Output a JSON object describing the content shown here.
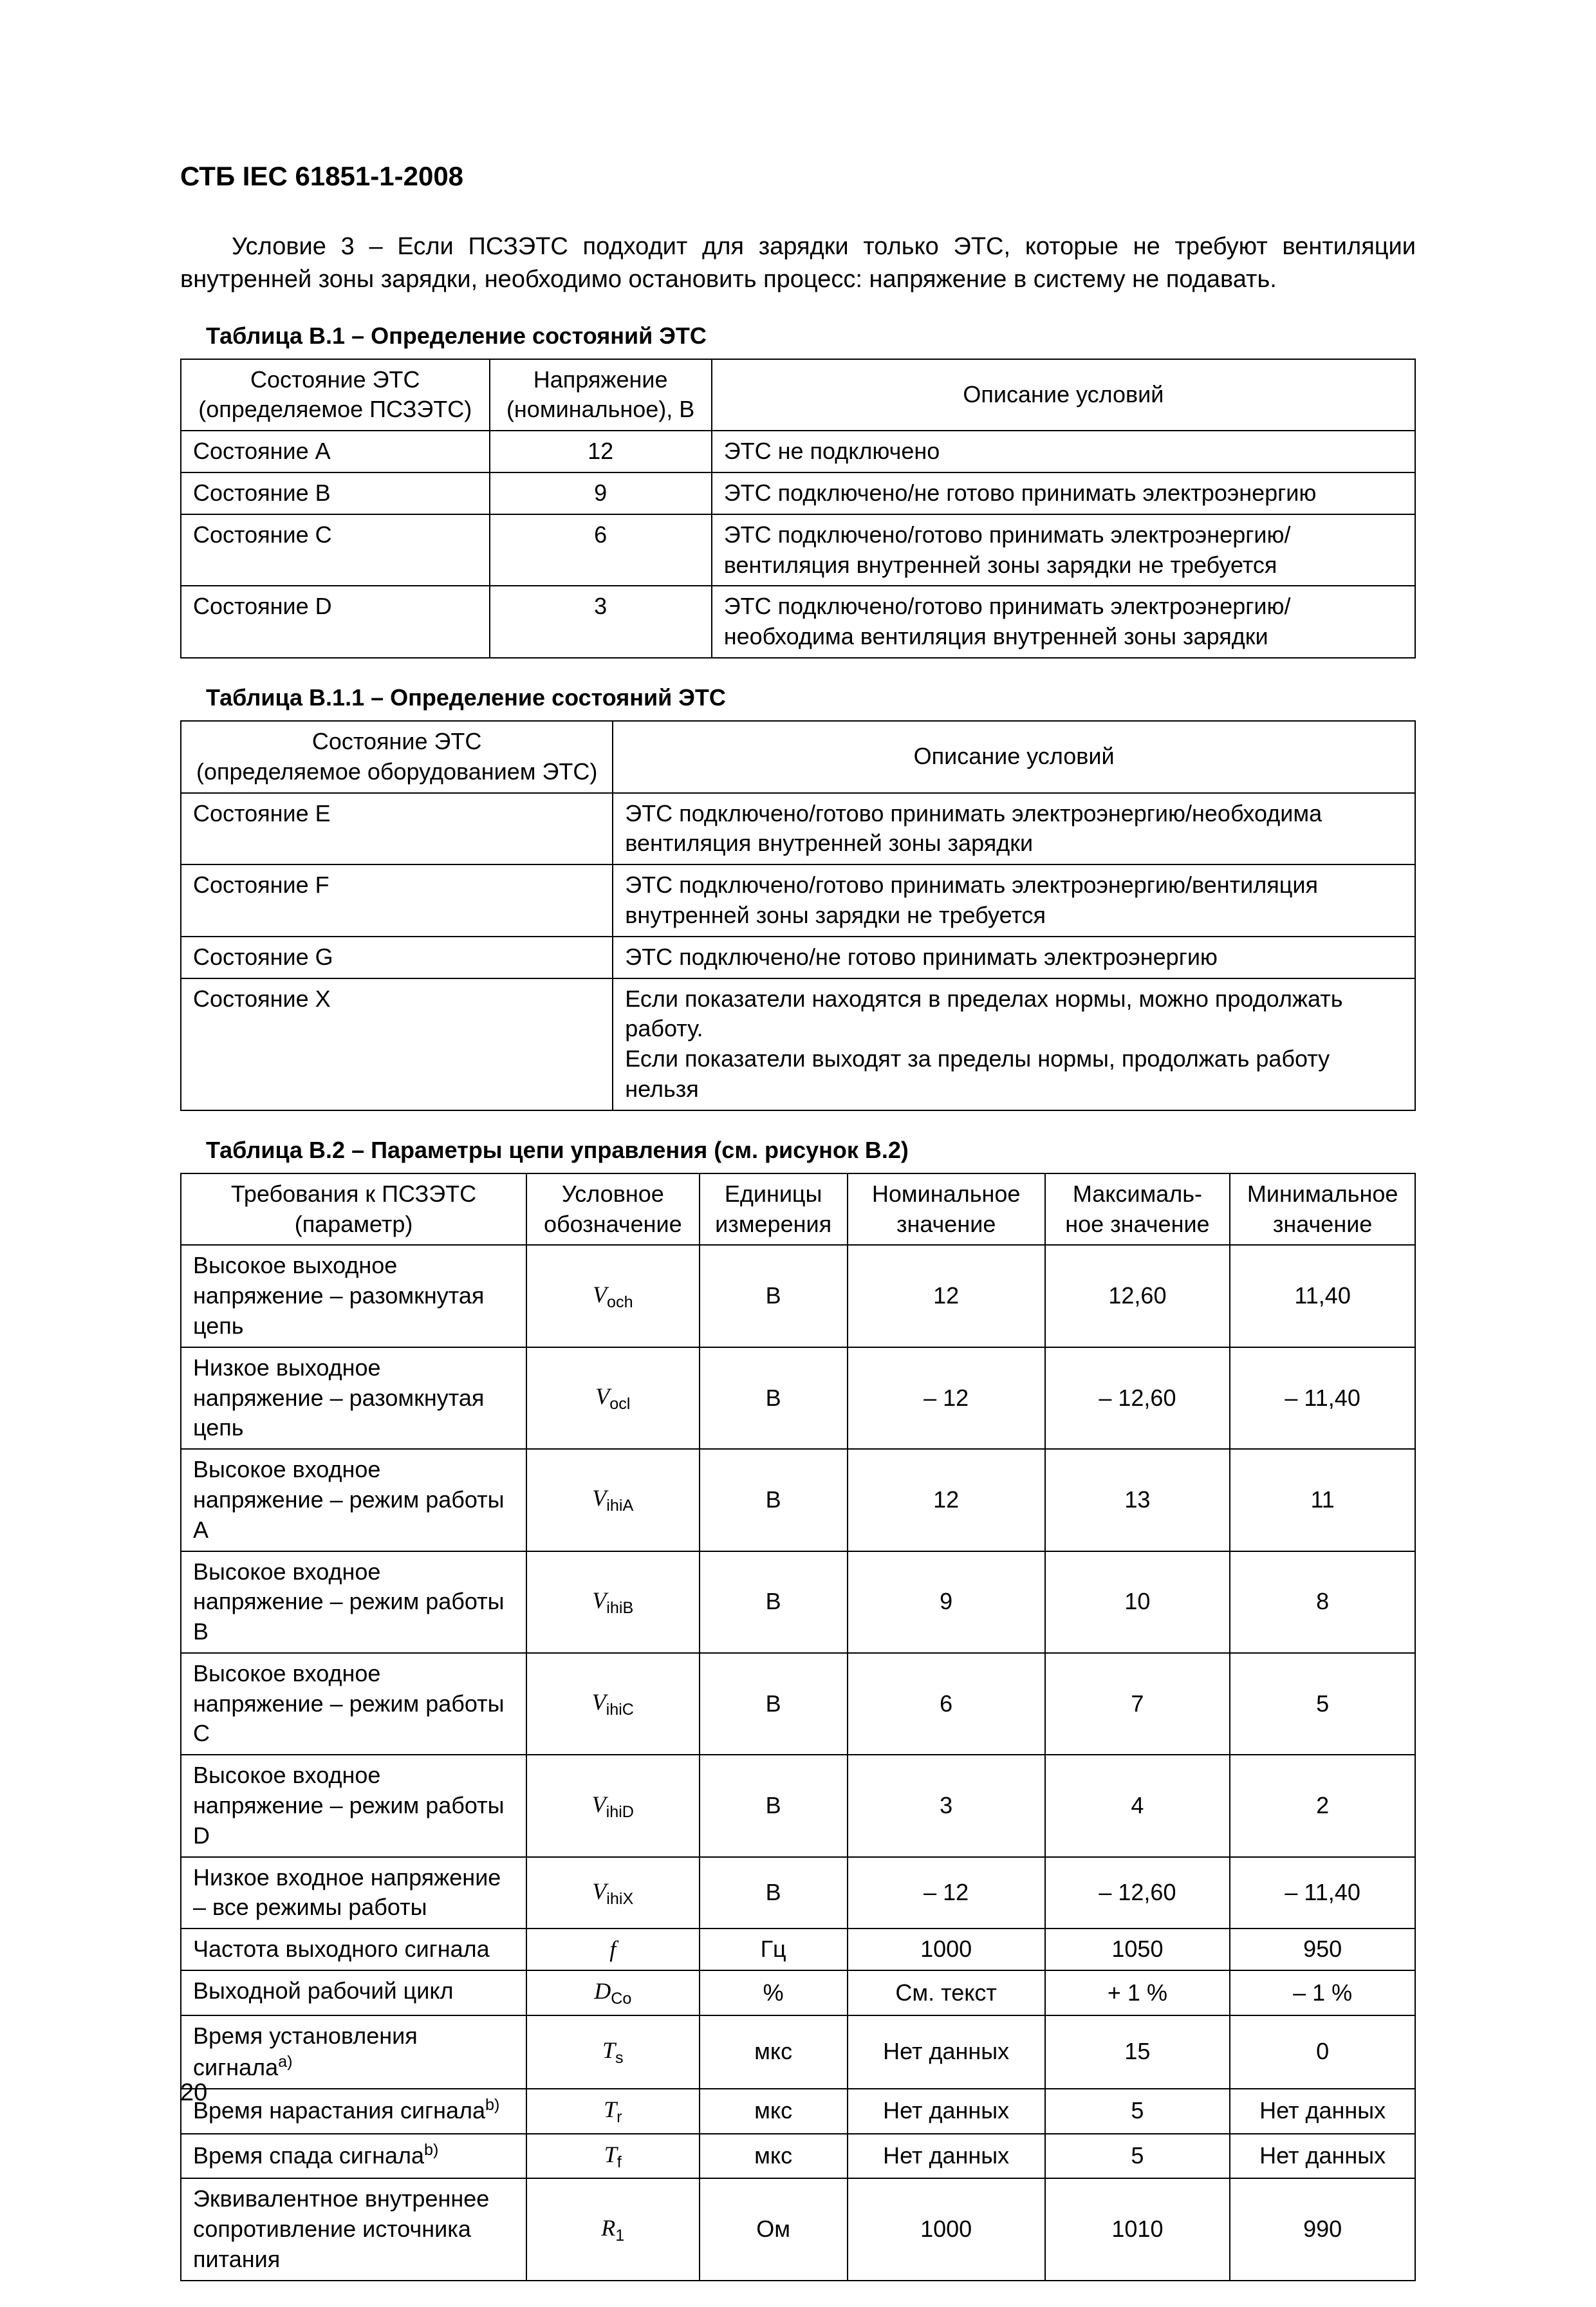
{
  "header": "СТБ IEC 61851-1-2008",
  "paragraph": "Условие 3 – Если ПСЗЭТС подходит для зарядки только ЭТС, которые не требуют вентиляции внутренней зоны зарядки, необходимо остановить процесс: напряжение в систему не подавать.",
  "tableB1": {
    "caption": "Таблица B.1 – Определение состояний ЭТС",
    "head": {
      "c1a": "Состояние ЭТС",
      "c1b": "(определяемое ПСЗЭТС)",
      "c2a": "Напряжение",
      "c2b": "(номинальное), В",
      "c3": "Описание условий"
    },
    "rows": [
      {
        "state": "Состояние A",
        "volt": "12",
        "desc": "ЭТС не подключено"
      },
      {
        "state": "Состояние B",
        "volt": "9",
        "desc": "ЭТС подключено/не готово принимать электроэнергию"
      },
      {
        "state": "Состояние C",
        "volt": "6",
        "desc": "ЭТС подключено/готово принимать электроэнергию/ вентиляция внутренней зоны зарядки не требуется"
      },
      {
        "state": "Состояние D",
        "volt": "3",
        "desc": "ЭТС подключено/готово принимать электроэнергию/ необходима вентиляция внутренней зоны зарядки"
      }
    ]
  },
  "tableB11": {
    "caption": "Таблица B.1.1 – Определение состояний ЭТС",
    "head": {
      "c1a": "Состояние ЭТС",
      "c1b": "(определяемое оборудованием ЭТС)",
      "c2": "Описание условий"
    },
    "rows": [
      {
        "state": "Состояние E",
        "desc": "ЭТС подключено/готово принимать электроэнергию/необходима вентиляция внутренней зоны зарядки"
      },
      {
        "state": "Состояние F",
        "desc": "ЭТС подключено/готово принимать электроэнергию/вентиляция внутренней зоны зарядки не требуется"
      },
      {
        "state": "Состояние G",
        "desc": "ЭТС подключено/не готово принимать электроэнергию"
      },
      {
        "state": "Состояние X",
        "desc": "Если показатели находятся в пределах нормы, можно продолжать работу.\nЕсли показатели выходят за пределы нормы, продолжать работу нельзя"
      }
    ]
  },
  "tableB2": {
    "caption": "Таблица B.2 – Параметры цепи управления (см. рисунок В.2)",
    "head": {
      "c1a": "Требования к ПСЗЭТС",
      "c1b": "(параметр)",
      "c2a": "Условное",
      "c2b": "обозначение",
      "c3a": "Единицы",
      "c3b": "измерения",
      "c4a": "Номинальное",
      "c4b": "значение",
      "c5a": "Максималь-",
      "c5b": "ное значение",
      "c6a": "Минимальное",
      "c6b": "значение"
    },
    "rows": [
      {
        "param": "Высокое выходное напряжение – разомкнутая цепь",
        "sym": "V",
        "sub": "och",
        "unit": "В",
        "nom": "12",
        "max": "12,60",
        "min": "11,40"
      },
      {
        "param": "Низкое выходное напряжение – разомкнутая цепь",
        "sym": "V",
        "sub": "ocl",
        "unit": "В",
        "nom": "– 12",
        "max": "– 12,60",
        "min": "– 11,40"
      },
      {
        "param": "Высокое входное напряжение – режим работы A",
        "sym": "V",
        "sub": "ihiA",
        "unit": "В",
        "nom": "12",
        "max": "13",
        "min": "11"
      },
      {
        "param": "Высокое входное напряжение – режим работы B",
        "sym": "V",
        "sub": "ihiB",
        "unit": "В",
        "nom": "9",
        "max": "10",
        "min": "8"
      },
      {
        "param": "Высокое входное напряжение – режим работы C",
        "sym": "V",
        "sub": "ihiC",
        "unit": "В",
        "nom": "6",
        "max": "7",
        "min": "5"
      },
      {
        "param": "Высокое входное напряжение – режим работы D",
        "sym": "V",
        "sub": "ihiD",
        "unit": "В",
        "nom": "3",
        "max": "4",
        "min": "2"
      },
      {
        "param": "Низкое входное напряжение – все режимы работы",
        "sym": "V",
        "sub": "ihiX",
        "unit": "В",
        "nom": "– 12",
        "max": "– 12,60",
        "min": "– 11,40"
      },
      {
        "param": "Частота выходного сигнала",
        "sym": "f",
        "sub": "",
        "unit": "Гц",
        "nom": "1000",
        "max": "1050",
        "min": "950"
      },
      {
        "param": "Выходной рабочий цикл",
        "sym": "D",
        "sub": "Co",
        "unit": "%",
        "nom": "См. текст",
        "max": "+ 1 %",
        "min": "– 1 %"
      },
      {
        "param": "Время установления сигнала",
        "sup": "a)",
        "sym": "T",
        "sub": "s",
        "unit": "мкс",
        "nom": "Нет данных",
        "max": "15",
        "min": "0"
      },
      {
        "param": "Время нарастания сигнала",
        "sup": "b)",
        "sym": "T",
        "sub": "r",
        "unit": "мкс",
        "nom": "Нет данных",
        "max": "5",
        "min": "Нет данных"
      },
      {
        "param": "Время спада сигнала",
        "sup": "b)",
        "sym": "T",
        "sub": "f",
        "unit": "мкс",
        "nom": "Нет данных",
        "max": "5",
        "min": "Нет данных"
      },
      {
        "param": "Эквивалентное внутреннее сопротивление источника питания",
        "sym": "R",
        "sub": "1",
        "unit": "Ом",
        "nom": "1000",
        "max": "1010",
        "min": "990"
      }
    ]
  },
  "pageNumber": "20",
  "colors": {
    "text": "#000000",
    "background": "#ffffff",
    "border": "#000000"
  }
}
